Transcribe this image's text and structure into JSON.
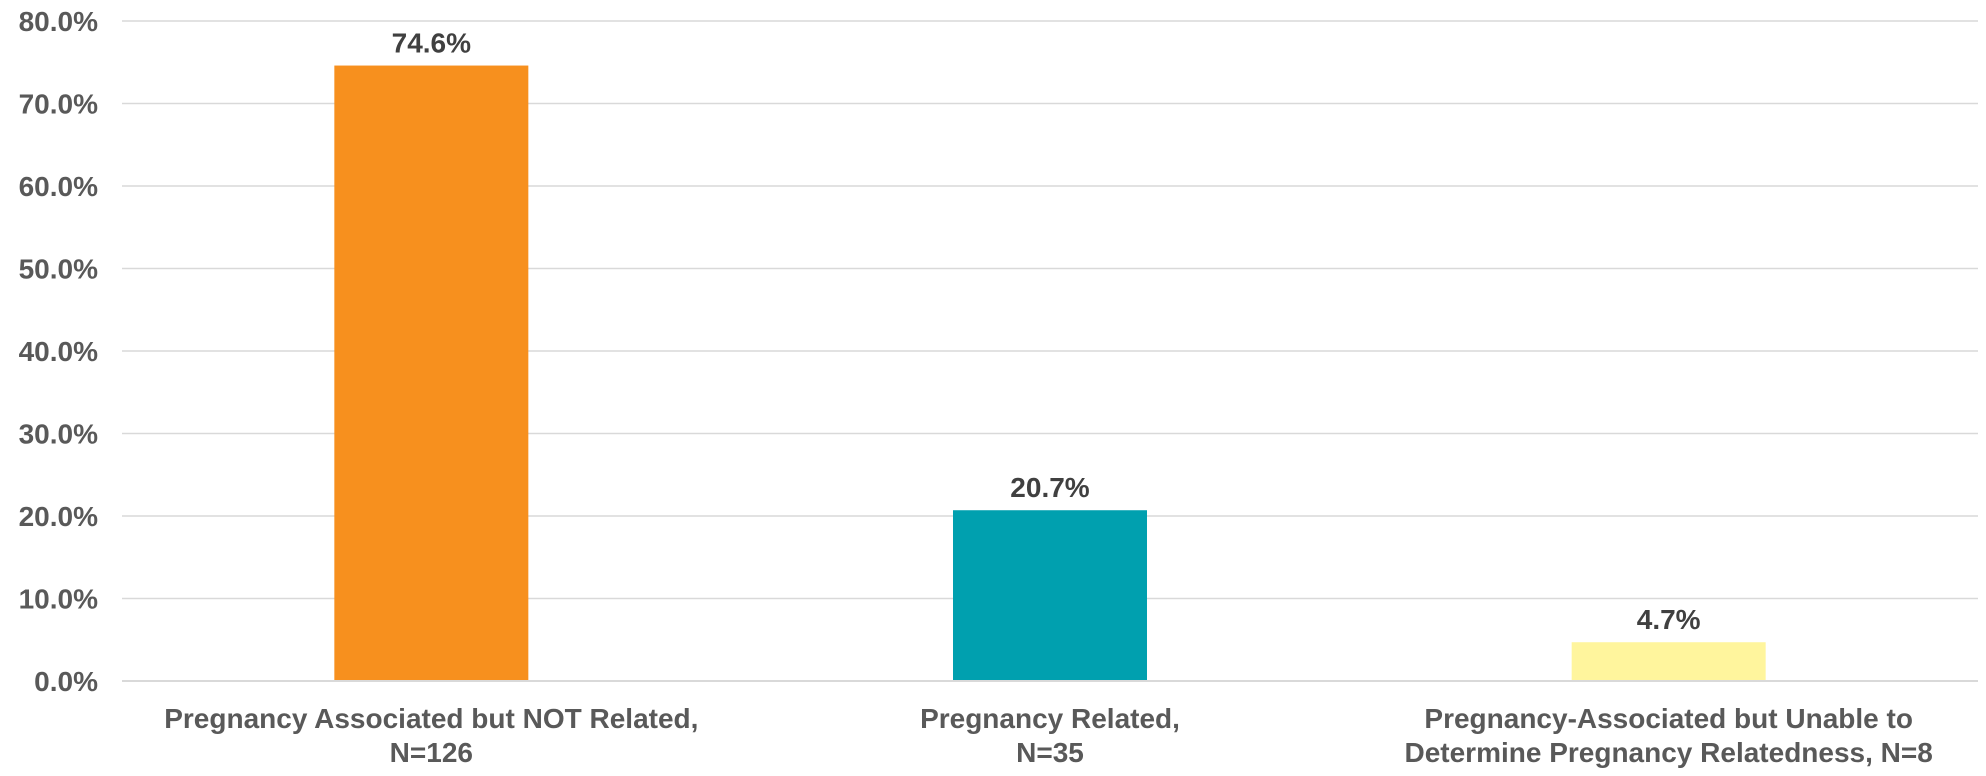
{
  "chart_data": {
    "type": "bar",
    "title": "",
    "xlabel": "",
    "ylabel": "",
    "ylim": [
      0,
      80
    ],
    "yticks": [
      0,
      10,
      20,
      30,
      40,
      50,
      60,
      70,
      80
    ],
    "ytick_labels": [
      "0.0%",
      "10.0%",
      "20.0%",
      "30.0%",
      "40.0%",
      "50.0%",
      "60.0%",
      "70.0%",
      "80.0%"
    ],
    "grid": true,
    "legend": "none",
    "categories": [
      [
        "Pregnancy Associated but NOT Related,",
        "N=126"
      ],
      [
        "Pregnancy Related,",
        "N=35"
      ],
      [
        "Pregnancy-Associated but Unable to",
        "Determine Pregnancy Relatedness, N=8"
      ]
    ],
    "values": [
      74.6,
      20.7,
      4.7
    ],
    "value_labels": [
      "74.6%",
      "20.7%",
      "4.7%"
    ],
    "colors": [
      "#F7901E",
      "#00A0AF",
      "#FFF59D"
    ]
  },
  "style": {
    "gridline_color": "#D9D9D9",
    "axis_line_color": "#D9D9D9",
    "tick_label_color": "#595959",
    "data_label_color": "#404040"
  }
}
